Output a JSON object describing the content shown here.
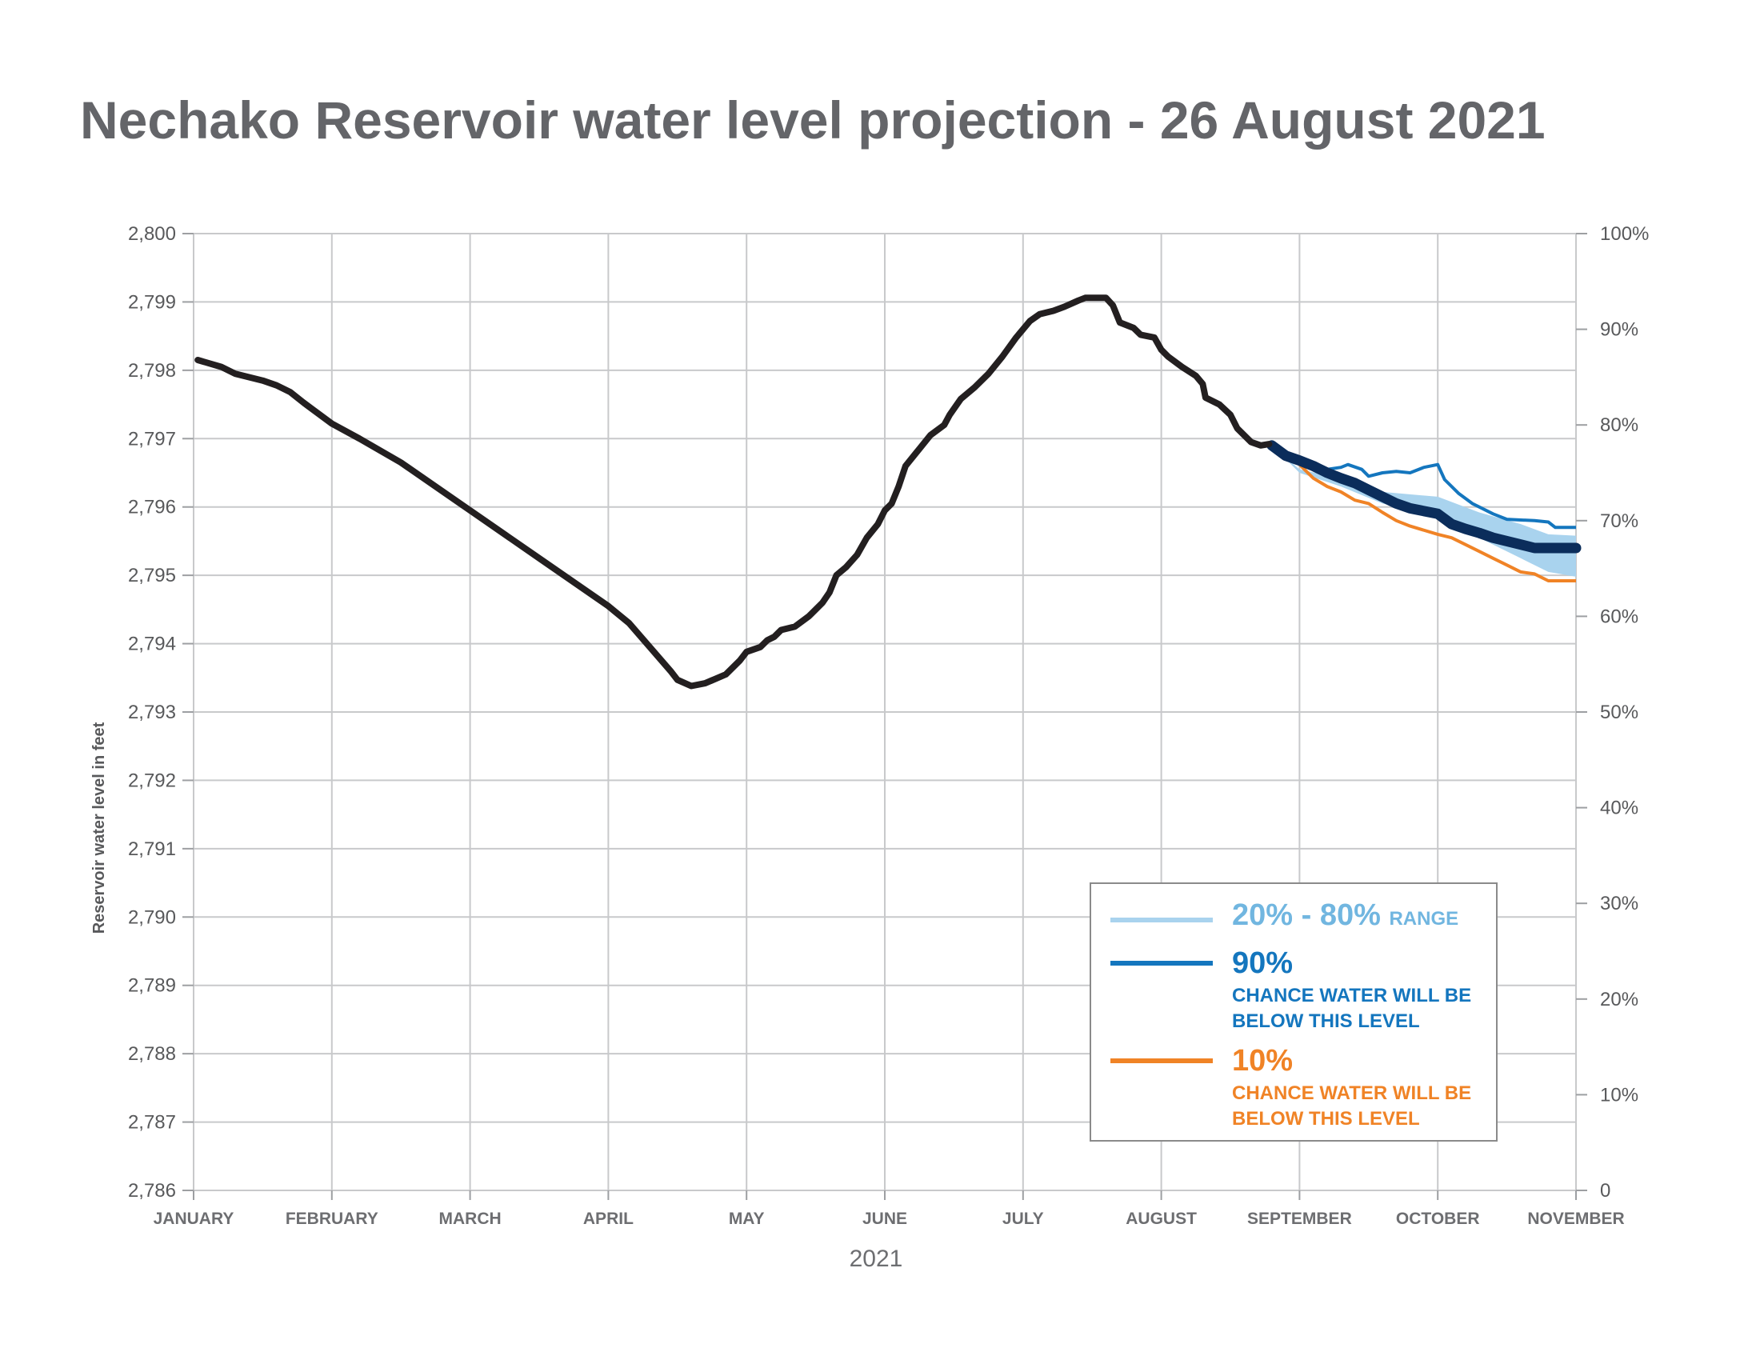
{
  "title": "Nechako Reservoir water level projection - 26 August 2021",
  "chart_data": {
    "type": "line",
    "title": "Nechako Reservoir water level projection - 26 August 2021",
    "xlabel": "2021",
    "ylabel": "Reservoir water level in feet",
    "ylim": [
      2786,
      2800
    ],
    "y_ticks": [
      "2,786",
      "2,787",
      "2,788",
      "2,789",
      "2,790",
      "2,791",
      "2,792",
      "2,793",
      "2,794",
      "2,795",
      "2,796",
      "2,797",
      "2,798",
      "2,799",
      "2,800"
    ],
    "y2_ticks": [
      "0",
      "10%",
      "20%",
      "30%",
      "40%",
      "50%",
      "60%",
      "70%",
      "80%",
      "90%",
      "100%"
    ],
    "x_ticks": [
      "JANUARY",
      "FEBRUARY",
      "MARCH",
      "APRIL",
      "MAY",
      "JUNE",
      "JULY",
      "AUGUST",
      "SEPTEMBER",
      "OCTOBER",
      "NOVEMBER"
    ],
    "x_unit": "month index (0 = January 1, 10 = November 1)",
    "grid": true,
    "legend_position": "bottom-right",
    "colors": {
      "observed": "#231f20",
      "range": "#a9d3ee",
      "median": "#0b2d5b",
      "p90": "#1476be",
      "p10": "#f08326",
      "grid": "#c8c9cb"
    },
    "series": [
      {
        "key": "observed",
        "points": [
          [
            0.03,
            2798.15
          ],
          [
            0.2,
            2798.05
          ],
          [
            0.3,
            2797.95
          ],
          [
            0.5,
            2797.85
          ],
          [
            0.6,
            2797.78
          ],
          [
            0.7,
            2797.68
          ],
          [
            0.8,
            2797.52
          ],
          [
            1.0,
            2797.22
          ],
          [
            1.2,
            2797.0
          ],
          [
            1.5,
            2796.65
          ],
          [
            2.0,
            2795.95
          ],
          [
            2.5,
            2795.25
          ],
          [
            3.0,
            2794.55
          ],
          [
            3.15,
            2794.3
          ],
          [
            3.3,
            2793.95
          ],
          [
            3.45,
            2793.6
          ],
          [
            3.5,
            2793.47
          ],
          [
            3.6,
            2793.38
          ],
          [
            3.7,
            2793.42
          ],
          [
            3.85,
            2793.55
          ],
          [
            3.95,
            2793.75
          ],
          [
            4.0,
            2793.88
          ],
          [
            4.1,
            2793.95
          ],
          [
            4.15,
            2794.05
          ],
          [
            4.2,
            2794.1
          ],
          [
            4.25,
            2794.2
          ],
          [
            4.35,
            2794.25
          ],
          [
            4.45,
            2794.4
          ],
          [
            4.5,
            2794.5
          ],
          [
            4.55,
            2794.6
          ],
          [
            4.6,
            2794.75
          ],
          [
            4.65,
            2795.0
          ],
          [
            4.72,
            2795.12
          ],
          [
            4.8,
            2795.3
          ],
          [
            4.87,
            2795.55
          ],
          [
            4.95,
            2795.75
          ],
          [
            5.0,
            2795.95
          ],
          [
            5.05,
            2796.05
          ],
          [
            5.1,
            2796.3
          ],
          [
            5.15,
            2796.6
          ],
          [
            5.25,
            2796.85
          ],
          [
            5.33,
            2797.05
          ],
          [
            5.43,
            2797.2
          ],
          [
            5.47,
            2797.35
          ],
          [
            5.55,
            2797.58
          ],
          [
            5.65,
            2797.75
          ],
          [
            5.75,
            2797.95
          ],
          [
            5.85,
            2798.2
          ],
          [
            5.95,
            2798.48
          ],
          [
            6.05,
            2798.72
          ],
          [
            6.12,
            2798.82
          ],
          [
            6.22,
            2798.87
          ],
          [
            6.3,
            2798.93
          ],
          [
            6.4,
            2799.02
          ],
          [
            6.45,
            2799.06
          ],
          [
            6.6,
            2799.06
          ],
          [
            6.65,
            2798.95
          ],
          [
            6.7,
            2798.7
          ],
          [
            6.8,
            2798.62
          ],
          [
            6.85,
            2798.52
          ],
          [
            6.95,
            2798.48
          ],
          [
            7.0,
            2798.3
          ],
          [
            7.05,
            2798.2
          ],
          [
            7.15,
            2798.05
          ],
          [
            7.25,
            2797.92
          ],
          [
            7.3,
            2797.8
          ],
          [
            7.32,
            2797.6
          ],
          [
            7.42,
            2797.5
          ],
          [
            7.5,
            2797.35
          ],
          [
            7.55,
            2797.15
          ],
          [
            7.65,
            2796.95
          ],
          [
            7.72,
            2796.9
          ],
          [
            7.78,
            2796.92
          ]
        ]
      },
      {
        "key": "range_upper",
        "points": [
          [
            7.8,
            2796.9
          ],
          [
            8.0,
            2796.55
          ],
          [
            8.3,
            2796.42
          ],
          [
            8.6,
            2796.22
          ],
          [
            9.0,
            2796.15
          ],
          [
            9.3,
            2795.92
          ],
          [
            9.6,
            2795.75
          ],
          [
            9.8,
            2795.6
          ],
          [
            10.0,
            2795.58
          ]
        ]
      },
      {
        "key": "range_lower",
        "points": [
          [
            7.8,
            2796.9
          ],
          [
            8.0,
            2796.5
          ],
          [
            8.3,
            2796.3
          ],
          [
            8.6,
            2796.05
          ],
          [
            9.0,
            2795.85
          ],
          [
            9.3,
            2795.55
          ],
          [
            9.6,
            2795.25
          ],
          [
            9.8,
            2795.05
          ],
          [
            10.0,
            2794.98
          ]
        ]
      },
      {
        "key": "median",
        "points": [
          [
            7.8,
            2796.9
          ],
          [
            7.9,
            2796.75
          ],
          [
            8.0,
            2796.68
          ],
          [
            8.1,
            2796.6
          ],
          [
            8.2,
            2796.5
          ],
          [
            8.3,
            2796.42
          ],
          [
            8.4,
            2796.35
          ],
          [
            8.5,
            2796.25
          ],
          [
            8.6,
            2796.15
          ],
          [
            8.7,
            2796.05
          ],
          [
            8.8,
            2795.98
          ],
          [
            9.0,
            2795.9
          ],
          [
            9.1,
            2795.75
          ],
          [
            9.2,
            2795.68
          ],
          [
            9.3,
            2795.62
          ],
          [
            9.4,
            2795.55
          ],
          [
            9.5,
            2795.5
          ],
          [
            9.6,
            2795.45
          ],
          [
            9.7,
            2795.4
          ],
          [
            10.0,
            2795.4
          ]
        ]
      },
      {
        "key": "p90",
        "name": "90%",
        "points": [
          [
            7.78,
            2796.95
          ],
          [
            7.85,
            2796.85
          ],
          [
            7.9,
            2796.78
          ],
          [
            8.0,
            2796.65
          ],
          [
            8.1,
            2796.62
          ],
          [
            8.2,
            2796.55
          ],
          [
            8.3,
            2796.58
          ],
          [
            8.35,
            2796.62
          ],
          [
            8.45,
            2796.55
          ],
          [
            8.5,
            2796.45
          ],
          [
            8.6,
            2796.5
          ],
          [
            8.7,
            2796.52
          ],
          [
            8.8,
            2796.5
          ],
          [
            8.9,
            2796.58
          ],
          [
            9.0,
            2796.62
          ],
          [
            9.05,
            2796.4
          ],
          [
            9.15,
            2796.2
          ],
          [
            9.25,
            2796.05
          ],
          [
            9.4,
            2795.9
          ],
          [
            9.5,
            2795.82
          ],
          [
            9.7,
            2795.8
          ],
          [
            9.8,
            2795.78
          ],
          [
            9.85,
            2795.7
          ],
          [
            10.0,
            2795.7
          ]
        ]
      },
      {
        "key": "p10",
        "name": "10%",
        "points": [
          [
            7.8,
            2796.9
          ],
          [
            7.9,
            2796.78
          ],
          [
            8.0,
            2796.62
          ],
          [
            8.1,
            2796.42
          ],
          [
            8.2,
            2796.3
          ],
          [
            8.3,
            2796.22
          ],
          [
            8.4,
            2796.1
          ],
          [
            8.5,
            2796.05
          ],
          [
            8.6,
            2795.92
          ],
          [
            8.7,
            2795.8
          ],
          [
            8.8,
            2795.72
          ],
          [
            9.0,
            2795.6
          ],
          [
            9.1,
            2795.55
          ],
          [
            9.2,
            2795.45
          ],
          [
            9.3,
            2795.35
          ],
          [
            9.4,
            2795.25
          ],
          [
            9.5,
            2795.15
          ],
          [
            9.6,
            2795.05
          ],
          [
            9.7,
            2795.02
          ],
          [
            9.8,
            2794.92
          ],
          [
            10.0,
            2794.92
          ]
        ]
      }
    ]
  },
  "legend": {
    "range_label": "20% - 80%",
    "range_suffix": "RANGE",
    "p90_label": "90%",
    "p90_desc": "CHANCE WATER WILL BE BELOW THIS LEVEL",
    "p10_label": "10%",
    "p10_desc": "CHANCE WATER WILL BE BELOW THIS LEVEL"
  }
}
